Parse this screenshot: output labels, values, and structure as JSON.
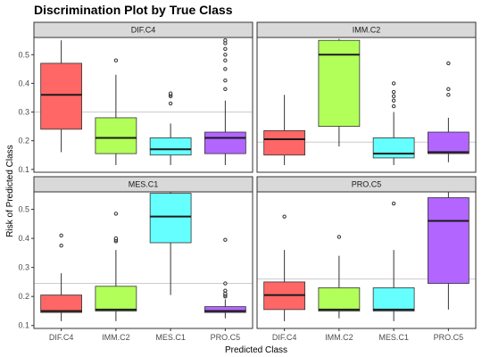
{
  "chart_data": {
    "type": "boxplot",
    "title": "Discrimination Plot by True Class",
    "xlabel": "Predicted Class",
    "ylabel": "Risk of Predicted Class",
    "categories": [
      "DIF.C4",
      "IMM.C2",
      "MES.C1",
      "PRO.C5"
    ],
    "colors": {
      "DIF.C4": "#ff6666",
      "IMM.C2": "#b3ff5a",
      "MES.C1": "#66ffff",
      "PRO.C5": "#b266ff"
    },
    "y_ticks": [
      0.1,
      0.2,
      0.3,
      0.4,
      0.5
    ],
    "y_tick_labels": [
      "0.1",
      "0.2",
      "0.3",
      "0.4",
      "0.5"
    ],
    "ylim": [
      0.09,
      0.56
    ],
    "reference_line_color": "#cccccc",
    "panels": [
      {
        "label": "DIF.C4",
        "reference_line": 0.3,
        "boxes": [
          {
            "category": "DIF.C4",
            "whisker_low": 0.16,
            "q1": 0.24,
            "median": 0.36,
            "q3": 0.47,
            "whisker_high": 0.55,
            "outliers": []
          },
          {
            "category": "IMM.C2",
            "whisker_low": 0.115,
            "q1": 0.155,
            "median": 0.21,
            "q3": 0.28,
            "whisker_high": 0.43,
            "outliers": [
              0.48
            ]
          },
          {
            "category": "MES.C1",
            "whisker_low": 0.115,
            "q1": 0.15,
            "median": 0.17,
            "q3": 0.21,
            "whisker_high": 0.26,
            "outliers": [
              0.33,
              0.355,
              0.36,
              0.365
            ]
          },
          {
            "category": "PRO.C5",
            "whisker_low": 0.115,
            "q1": 0.155,
            "median": 0.21,
            "q3": 0.23,
            "whisker_high": 0.34,
            "outliers": [
              0.38,
              0.41,
              0.45,
              0.48,
              0.5,
              0.52,
              0.54,
              0.55
            ]
          }
        ]
      },
      {
        "label": "IMM.C2",
        "reference_line": 0.195,
        "boxes": [
          {
            "category": "DIF.C4",
            "whisker_low": 0.115,
            "q1": 0.15,
            "median": 0.205,
            "q3": 0.235,
            "whisker_high": 0.36,
            "outliers": []
          },
          {
            "category": "IMM.C2",
            "whisker_low": 0.18,
            "q1": 0.25,
            "median": 0.5,
            "q3": 0.55,
            "whisker_high": 0.555,
            "outliers": []
          },
          {
            "category": "MES.C1",
            "whisker_low": 0.115,
            "q1": 0.14,
            "median": 0.155,
            "q3": 0.21,
            "whisker_high": 0.3,
            "outliers": [
              0.32,
              0.34,
              0.355,
              0.37,
              0.4
            ]
          },
          {
            "category": "PRO.C5",
            "whisker_low": 0.125,
            "q1": 0.155,
            "median": 0.16,
            "q3": 0.23,
            "whisker_high": 0.28,
            "outliers": [
              0.36,
              0.38,
              0.47
            ]
          }
        ]
      },
      {
        "label": "MES.C1",
        "reference_line": 0.245,
        "boxes": [
          {
            "category": "DIF.C4",
            "whisker_low": 0.115,
            "q1": 0.145,
            "median": 0.15,
            "q3": 0.205,
            "whisker_high": 0.28,
            "outliers": [
              0.375,
              0.41
            ]
          },
          {
            "category": "IMM.C2",
            "whisker_low": 0.115,
            "q1": 0.15,
            "median": 0.155,
            "q3": 0.235,
            "whisker_high": 0.36,
            "outliers": [
              0.39,
              0.395,
              0.4,
              0.485
            ]
          },
          {
            "category": "MES.C1",
            "whisker_low": 0.205,
            "q1": 0.385,
            "median": 0.475,
            "q3": 0.555,
            "whisker_high": 0.56,
            "outliers": []
          },
          {
            "category": "PRO.C5",
            "whisker_low": 0.125,
            "q1": 0.145,
            "median": 0.15,
            "q3": 0.165,
            "whisker_high": 0.19,
            "outliers": [
              0.2,
              0.205,
              0.21,
              0.22,
              0.245,
              0.395
            ]
          }
        ]
      },
      {
        "label": "PRO.C5",
        "reference_line": 0.26,
        "boxes": [
          {
            "category": "DIF.C4",
            "whisker_low": 0.115,
            "q1": 0.155,
            "median": 0.205,
            "q3": 0.25,
            "whisker_high": 0.36,
            "outliers": [
              0.475
            ]
          },
          {
            "category": "IMM.C2",
            "whisker_low": 0.125,
            "q1": 0.15,
            "median": 0.155,
            "q3": 0.23,
            "whisker_high": 0.34,
            "outliers": [
              0.405
            ]
          },
          {
            "category": "MES.C1",
            "whisker_low": 0.115,
            "q1": 0.15,
            "median": 0.155,
            "q3": 0.23,
            "whisker_high": 0.36,
            "outliers": [
              0.52
            ]
          },
          {
            "category": "PRO.C5",
            "whisker_low": 0.155,
            "q1": 0.245,
            "median": 0.46,
            "q3": 0.54,
            "whisker_high": 0.56,
            "outliers": []
          }
        ]
      }
    ]
  }
}
